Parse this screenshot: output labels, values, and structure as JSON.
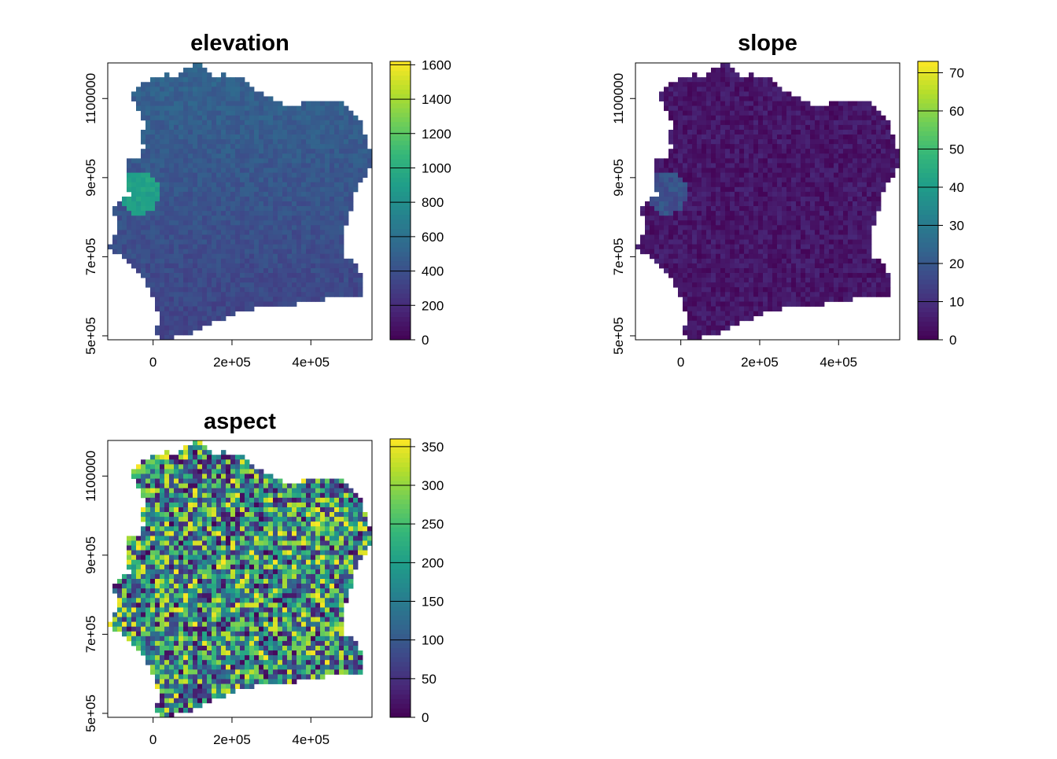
{
  "chart_data": [
    {
      "type": "heatmap",
      "title": "elevation",
      "x_ticks": [
        {
          "value": 0,
          "label": "0"
        },
        {
          "value": 200000,
          "label": "2e+05"
        },
        {
          "value": 400000,
          "label": "4e+05"
        }
      ],
      "y_ticks": [
        {
          "value": 500000,
          "label": "5e+05"
        },
        {
          "value": 700000,
          "label": "7e+05"
        },
        {
          "value": 900000,
          "label": "9e+05"
        },
        {
          "value": 1100000,
          "label": "1100000"
        }
      ],
      "xlim": [
        -115000,
        555000
      ],
      "ylim": [
        490000,
        1190000
      ],
      "legend": {
        "min": 0,
        "max": 1620,
        "ticks": [
          0,
          200,
          400,
          600,
          800,
          1000,
          1200,
          1400,
          1600
        ],
        "tick_labels": [
          "0",
          "200",
          "400",
          "600",
          "800",
          "1000",
          "1200",
          "1400",
          "1600"
        ]
      },
      "colormap": "viridis",
      "typical_value": 0.2,
      "variability": 0.04,
      "highlands_value": 0.5
    },
    {
      "type": "heatmap",
      "title": "slope",
      "x_ticks": [
        {
          "value": 0,
          "label": "0"
        },
        {
          "value": 200000,
          "label": "2e+05"
        },
        {
          "value": 400000,
          "label": "4e+05"
        }
      ],
      "y_ticks": [
        {
          "value": 500000,
          "label": "5e+05"
        },
        {
          "value": 700000,
          "label": "7e+05"
        },
        {
          "value": 900000,
          "label": "9e+05"
        },
        {
          "value": 1100000,
          "label": "1100000"
        }
      ],
      "xlim": [
        -115000,
        555000
      ],
      "ylim": [
        490000,
        1190000
      ],
      "legend": {
        "min": 0,
        "max": 73,
        "ticks": [
          0,
          10,
          20,
          30,
          40,
          50,
          60,
          70
        ],
        "tick_labels": [
          "0",
          "10",
          "20",
          "30",
          "40",
          "50",
          "60",
          "70"
        ]
      },
      "colormap": "viridis",
      "typical_value": 0.06,
      "variability": 0.05,
      "highlands_value": 0.25
    },
    {
      "type": "heatmap",
      "title": "aspect",
      "x_ticks": [
        {
          "value": 0,
          "label": "0"
        },
        {
          "value": 200000,
          "label": "2e+05"
        },
        {
          "value": 400000,
          "label": "4e+05"
        }
      ],
      "y_ticks": [
        {
          "value": 500000,
          "label": "5e+05"
        },
        {
          "value": 700000,
          "label": "7e+05"
        },
        {
          "value": 900000,
          "label": "9e+05"
        },
        {
          "value": 1100000,
          "label": "1100000"
        }
      ],
      "xlim": [
        -115000,
        555000
      ],
      "ylim": [
        490000,
        1190000
      ],
      "legend": {
        "min": 0,
        "max": 360,
        "ticks": [
          0,
          50,
          100,
          150,
          200,
          250,
          300,
          350
        ],
        "tick_labels": [
          "0",
          "50",
          "100",
          "150",
          "200",
          "250",
          "300",
          "350"
        ]
      },
      "colormap": "viridis",
      "typical_value": 0.5,
      "variability": 0.5,
      "highlands_value": 0.5
    }
  ],
  "colors": {
    "viridis": [
      "#440154",
      "#482878",
      "#3e4989",
      "#31688e",
      "#26828e",
      "#1f9e89",
      "#35b779",
      "#6ece58",
      "#b5de2b",
      "#fde725"
    ]
  }
}
